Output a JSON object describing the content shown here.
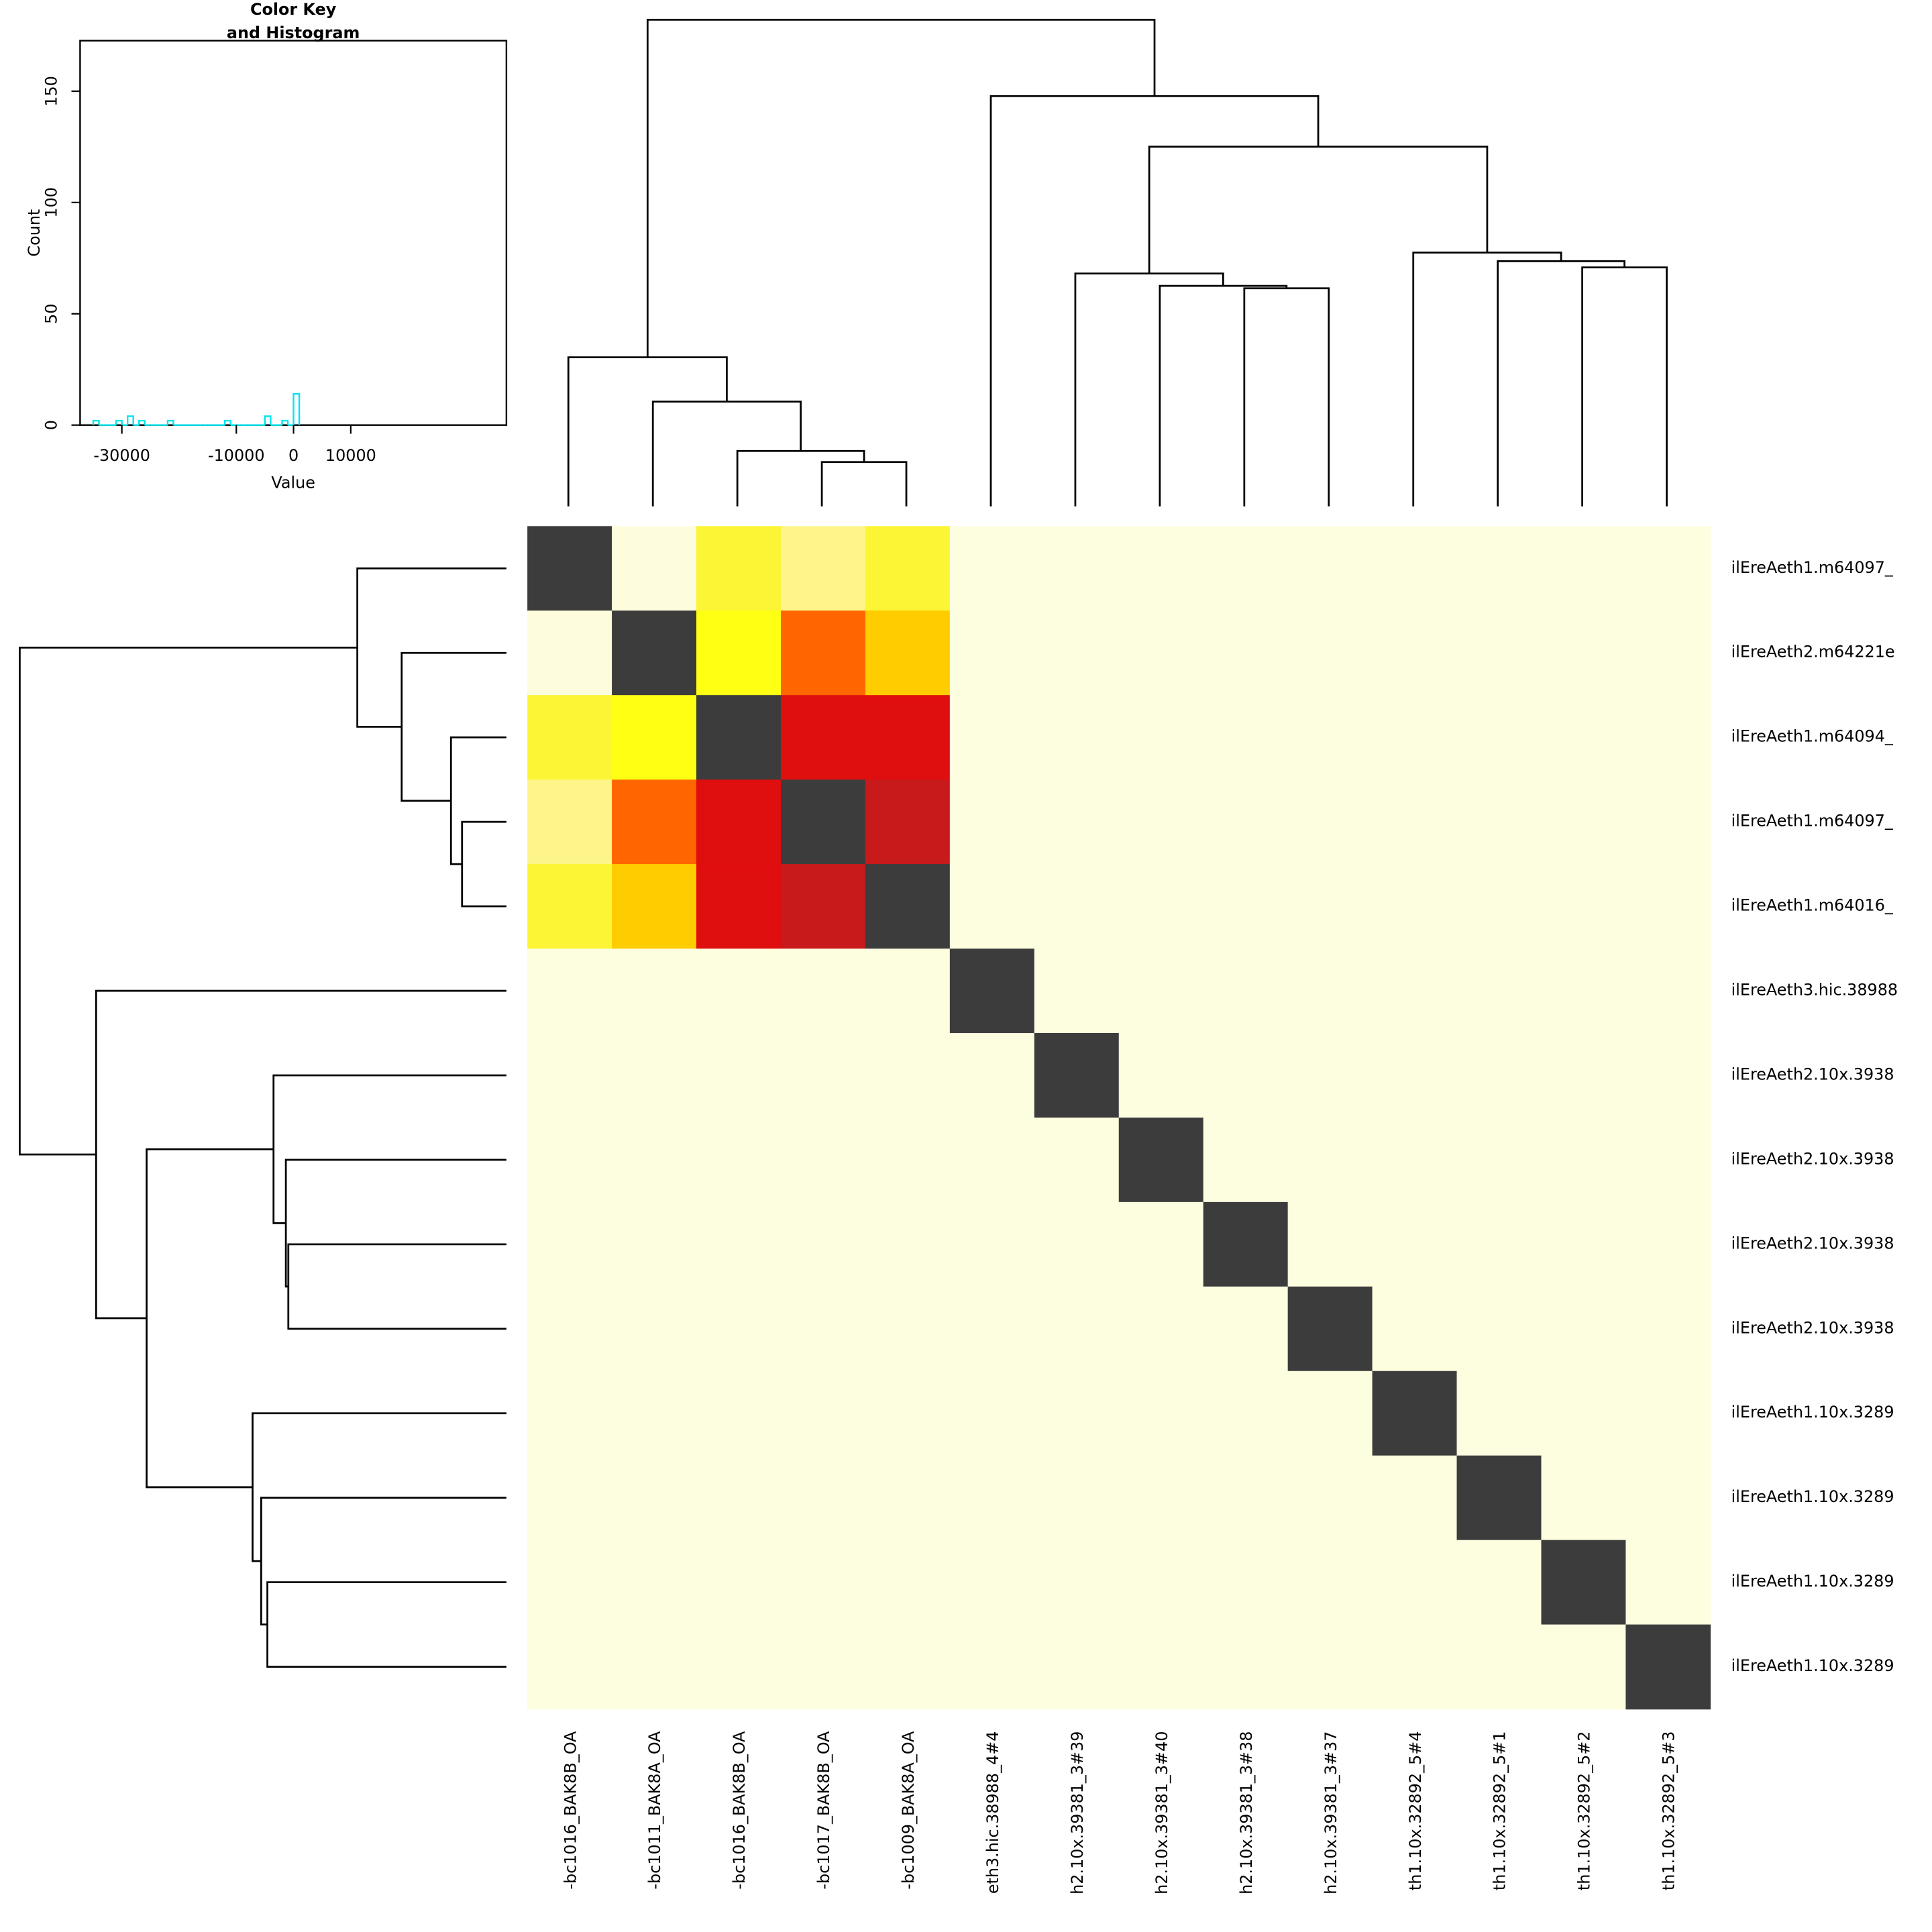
{
  "chart_data": {
    "type": "heatmap",
    "row_labels": [
      "ilEreAeth1.m64097_",
      "ilEreAeth2.m64221e",
      "ilEreAeth1.m64094_",
      "ilEreAeth1.m64097_",
      "ilEreAeth1.m64016_",
      "ilEreAeth3.hic.38988",
      "ilEreAeth2.10x.3938",
      "ilEreAeth2.10x.3938",
      "ilEreAeth2.10x.3938",
      "ilEreAeth2.10x.3938",
      "ilEreAeth1.10x.3289",
      "ilEreAeth1.10x.3289",
      "ilEreAeth1.10x.3289",
      "ilEreAeth1.10x.3289"
    ],
    "col_labels": [
      "-bc1016_BAK8B_OA",
      "-bc1011_BAK8A_OA",
      "-bc1016_BAK8B_OA",
      "-bc1017_BAK8B_OA",
      "-bc1009_BAK8A_OA",
      "eth3.hic.38988_4#4",
      "h2.10x.39381_3#39",
      "h2.10x.39381_3#40",
      "h2.10x.39381_3#38",
      "h2.10x.39381_3#37",
      "th1.10x.32892_5#4",
      "th1.10x.32892_5#1",
      "th1.10x.32892_5#2",
      "th1.10x.32892_5#3"
    ],
    "values": [
      [
        0,
        -35000,
        -29000,
        -31000,
        -29000,
        null,
        null,
        null,
        null,
        null,
        null,
        null,
        null,
        null
      ],
      [
        -35000,
        0,
        -26500,
        -12000,
        -22000,
        null,
        null,
        null,
        null,
        null,
        null,
        null,
        null,
        null
      ],
      [
        -29000,
        -26500,
        0,
        -5000,
        -5000,
        null,
        null,
        null,
        null,
        null,
        null,
        null,
        null,
        null
      ],
      [
        -31000,
        -12000,
        -5000,
        0,
        -2000,
        null,
        null,
        null,
        null,
        null,
        null,
        null,
        null,
        null
      ],
      [
        -29000,
        -22000,
        -5000,
        -2000,
        0,
        null,
        null,
        null,
        null,
        null,
        null,
        null,
        null,
        null
      ],
      [
        null,
        null,
        null,
        null,
        null,
        0,
        null,
        null,
        null,
        null,
        null,
        null,
        null,
        null
      ],
      [
        null,
        null,
        null,
        null,
        null,
        null,
        0,
        null,
        null,
        null,
        null,
        null,
        null,
        null
      ],
      [
        null,
        null,
        null,
        null,
        null,
        null,
        null,
        0,
        null,
        null,
        null,
        null,
        null,
        null
      ],
      [
        null,
        null,
        null,
        null,
        null,
        null,
        null,
        null,
        0,
        null,
        null,
        null,
        null,
        null
      ],
      [
        null,
        null,
        null,
        null,
        null,
        null,
        null,
        null,
        null,
        0,
        null,
        null,
        null,
        null
      ],
      [
        null,
        null,
        null,
        null,
        null,
        null,
        null,
        null,
        null,
        null,
        0,
        null,
        null,
        null
      ],
      [
        null,
        null,
        null,
        null,
        null,
        null,
        null,
        null,
        null,
        null,
        null,
        0,
        null,
        null
      ],
      [
        null,
        null,
        null,
        null,
        null,
        null,
        null,
        null,
        null,
        null,
        null,
        null,
        0,
        null
      ],
      [
        null,
        null,
        null,
        null,
        null,
        null,
        null,
        null,
        null,
        null,
        null,
        null,
        null,
        0
      ]
    ],
    "colorscale": [
      [
        -35000,
        "#fdfcdc"
      ],
      [
        -31000,
        "#fdf58a"
      ],
      [
        -29000,
        "#fcf535"
      ],
      [
        -26500,
        "#ffff14"
      ],
      [
        -22000,
        "#ffcc00"
      ],
      [
        -12000,
        "#ff6600"
      ],
      [
        -5000,
        "#e00f0f"
      ],
      [
        -2000,
        "#c81a1a"
      ],
      [
        0,
        "#3c3c3c"
      ]
    ],
    "na_color": "#fdfde0",
    "color_key": {
      "type": "histogram",
      "title": [
        "Color Key",
        "and Histogram"
      ],
      "xlabel": "Value",
      "ylabel": "Count",
      "bins": [
        -35000,
        -34000,
        -33000,
        -32000,
        -31000,
        -30000,
        -29000,
        -28000,
        -27000,
        -26000,
        -25000,
        -24000,
        -23000,
        -22000,
        -21000,
        -20000,
        -19000,
        -18000,
        -17000,
        -16000,
        -15000,
        -14000,
        -13000,
        -12000,
        -11000,
        -10000,
        -9000,
        -8000,
        -7000,
        -6000,
        -5000,
        -4000,
        -3000,
        -2000,
        -1000,
        0,
        1000
      ],
      "counts": [
        2,
        0,
        0,
        0,
        2,
        0,
        4,
        0,
        2,
        0,
        0,
        0,
        0,
        2,
        0,
        0,
        0,
        0,
        0,
        0,
        0,
        0,
        0,
        2,
        0,
        0,
        0,
        0,
        0,
        0,
        4,
        0,
        0,
        2,
        0,
        14
      ],
      "color": "#00e5ee",
      "xlim": [
        -37300,
        37200
      ],
      "ylim": [
        0,
        172.7
      ],
      "xticks": [
        -30000,
        -10000,
        0,
        10000
      ],
      "yticks": [
        0,
        50,
        100,
        150
      ]
    }
  }
}
